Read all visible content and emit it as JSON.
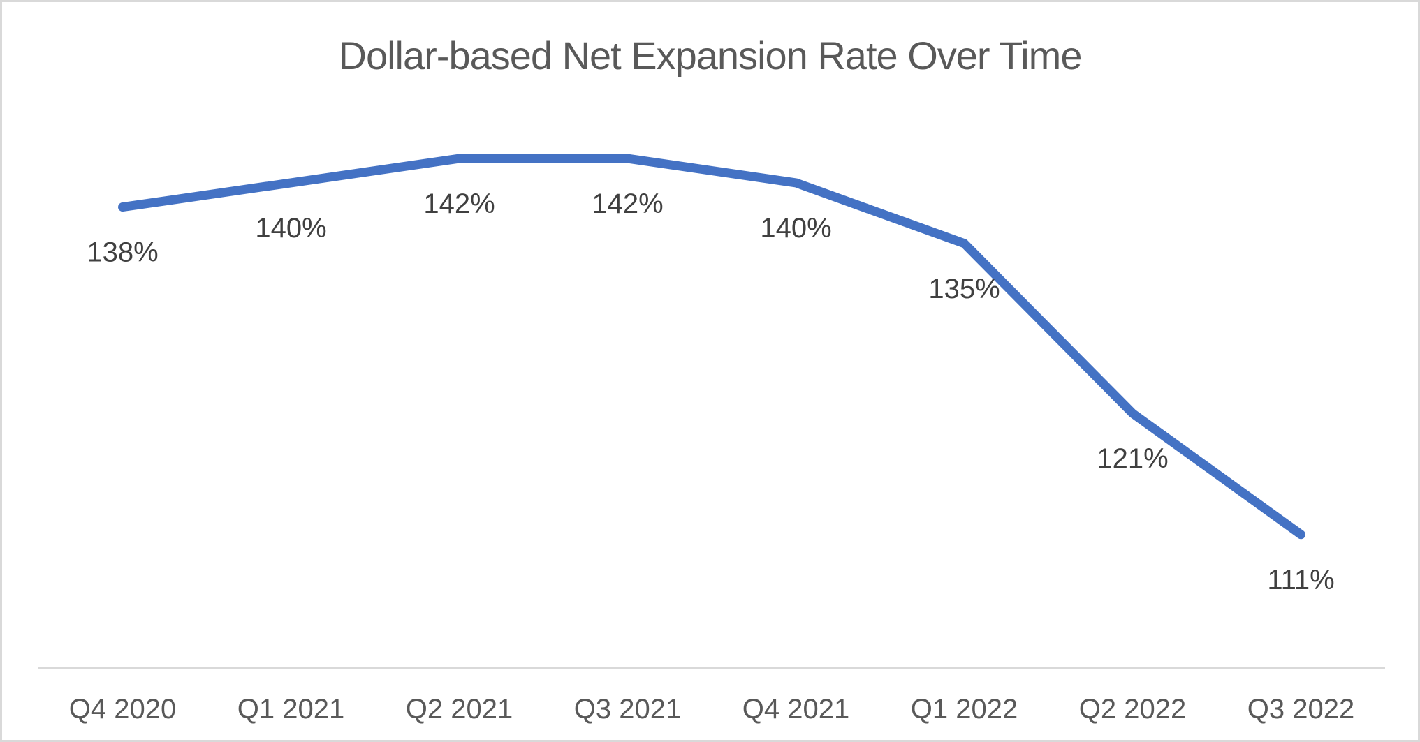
{
  "chart_data": {
    "type": "line",
    "title": "Dollar-based Net Expansion Rate Over Time",
    "categories": [
      "Q4 2020",
      "Q1 2021",
      "Q2 2021",
      "Q3 2021",
      "Q4 2021",
      "Q1 2022",
      "Q2 2022",
      "Q3 2022"
    ],
    "values": [
      138,
      140,
      142,
      142,
      140,
      135,
      121,
      111
    ],
    "data_labels": [
      "138%",
      "140%",
      "142%",
      "142%",
      "140%",
      "135%",
      "121%",
      "111%"
    ],
    "xlabel": "",
    "ylabel": "",
    "ylim": [
      100,
      145
    ],
    "grid": false,
    "legend": "none",
    "y_axis_visible": false,
    "data_label_position": "below",
    "colors": {
      "line": "#4472C4",
      "title_text": "#595959",
      "data_label_text": "#404040",
      "axis_label_text": "#595959",
      "axis_line": "#D9D9D9",
      "frame_border": "#D9D9D9",
      "background": "#FFFFFF"
    }
  }
}
